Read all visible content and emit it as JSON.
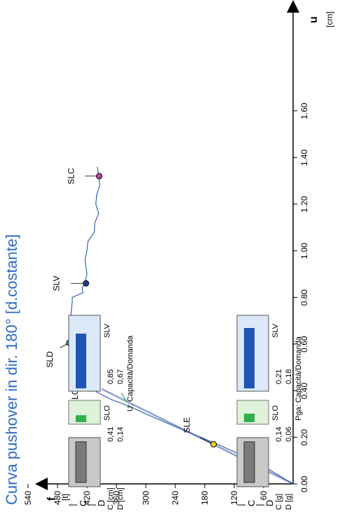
{
  "title": "Curva pushover in dir. 180° [d.costante]",
  "colors": {
    "curve": "#2d55a8",
    "axis": "#000000",
    "title": "#2d6bc4",
    "slo": "#2e9a4a",
    "sld": "#16a3b0",
    "slv": "#1d3f8a",
    "slc": "#c33fa8",
    "sle": "#f2d21c",
    "tangent": "#34b36a",
    "bar_grey": "#7a7a7a",
    "bar_grey_bg": "#c9c9c9",
    "bar_green": "#2fae4c",
    "bar_green_bg": "#dff2da",
    "bar_blue": "#1f56b5",
    "bar_blue_bg": "#dbe9f8"
  },
  "chart_data": {
    "type": "line",
    "xlabel": "u",
    "xunit": "[cm]",
    "ylabel": "f",
    "yunit": "[t]",
    "xlim": [
      0,
      2.0
    ],
    "ylim": [
      0,
      590
    ],
    "xticks": [
      "0.00",
      "0.20",
      "0.40",
      "0.60",
      "0.80",
      "1.00",
      "1.20",
      "1.40",
      "1.60"
    ],
    "yticks": [
      "60",
      "120",
      "180",
      "240",
      "300",
      "360",
      "420",
      "480",
      "540"
    ],
    "curve": [
      [
        0,
        0
      ],
      [
        0.1,
        80
      ],
      [
        0.18,
        165
      ],
      [
        0.25,
        245
      ],
      [
        0.3,
        300
      ],
      [
        0.33,
        330
      ],
      [
        0.36,
        368
      ],
      [
        0.38,
        388
      ],
      [
        0.4,
        405
      ],
      [
        0.44,
        428
      ],
      [
        0.48,
        442
      ],
      [
        0.52,
        450
      ],
      [
        0.57,
        455
      ],
      [
        0.62,
        456
      ],
      [
        0.67,
        455
      ],
      [
        0.72,
        453
      ],
      [
        0.78,
        450
      ],
      [
        0.8,
        450
      ],
      [
        0.82,
        428
      ],
      [
        0.84,
        430
      ],
      [
        0.86,
        424
      ],
      [
        0.9,
        420
      ],
      [
        0.96,
        424
      ],
      [
        1.0,
        420
      ],
      [
        1.04,
        418
      ],
      [
        1.08,
        405
      ],
      [
        1.12,
        404
      ],
      [
        1.16,
        396
      ],
      [
        1.2,
        402
      ],
      [
        1.24,
        400
      ],
      [
        1.28,
        394
      ],
      [
        1.32,
        396
      ],
      [
        1.36,
        399
      ]
    ],
    "bilinear": [
      [
        0,
        0
      ],
      [
        0.405,
        388
      ],
      [
        0.41,
        388
      ]
    ],
    "tangent_h": [
      [
        0.41,
        414
      ],
      [
        0.46,
        414
      ]
    ],
    "tangent_l": [
      [
        0.35,
        338
      ],
      [
        0.39,
        350
      ]
    ],
    "points": [
      {
        "label": "SLE",
        "x": 0.17,
        "y": 162,
        "color": "#f2d21c"
      },
      {
        "label": "SLO",
        "x": 0.44,
        "y": 427,
        "color": "#2e9a4a"
      },
      {
        "label": "SLD",
        "x": 0.605,
        "y": 456,
        "color": "#16a3b0"
      },
      {
        "label": "SLV",
        "x": 0.86,
        "y": 422,
        "color": "#1d3f8a"
      },
      {
        "label": "SLC",
        "x": 1.32,
        "y": 395,
        "color": "#c33fa8"
      }
    ]
  },
  "panel_u": {
    "legend": {
      "c": "C",
      "d": "D"
    },
    "rows": [
      {
        "label": "C [cm]",
        "values": [
          "0,41",
          "0,85"
        ]
      },
      {
        "label": "D [cm]",
        "values": [
          "0,14",
          "0,67"
        ]
      }
    ],
    "states": [
      "SLO",
      "SLV"
    ],
    "caption": "U: Capacità/Domanda",
    "levels": {
      "slo": 0.35,
      "slv": 0.78
    }
  },
  "panel_pga": {
    "legend": {
      "c": "C",
      "d": "D"
    },
    "rows": [
      {
        "label": "C [g]",
        "values": [
          "0,14",
          "0,21"
        ]
      },
      {
        "label": "D [g]",
        "values": [
          "0,06",
          "0,18"
        ]
      }
    ],
    "states": [
      "SLO",
      "SLV"
    ],
    "caption": "Pga: Capacità/Domanda",
    "levels": {
      "slo": 0.43,
      "slv": 0.86
    }
  }
}
